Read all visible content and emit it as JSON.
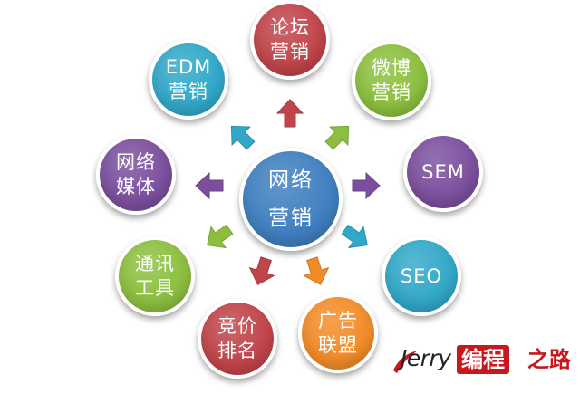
{
  "center": {
    "lines": [
      "网络",
      "营销"
    ],
    "color": "#3f7fbf"
  },
  "nodes": [
    {
      "id": "forum",
      "lines": [
        "论坛",
        "营销"
      ],
      "color": "#c0444a",
      "arrow_color": "#c0444a"
    },
    {
      "id": "weibo",
      "lines": [
        "微博",
        "营销"
      ],
      "color": "#8cbf3f",
      "arrow_color": "#8cbf3f"
    },
    {
      "id": "sem",
      "lines": [
        "SEM"
      ],
      "color": "#7b4f9d",
      "arrow_color": "#7b4f9d"
    },
    {
      "id": "seo",
      "lines": [
        "SEO"
      ],
      "color": "#31a8c8",
      "arrow_color": "#31a8c8"
    },
    {
      "id": "ads",
      "lines": [
        "广告",
        "联盟"
      ],
      "color": "#f28c28",
      "arrow_color": "#f28c28"
    },
    {
      "id": "bidding",
      "lines": [
        "竞价",
        "排名"
      ],
      "color": "#c0444a",
      "arrow_color": "#c0444a"
    },
    {
      "id": "im",
      "lines": [
        "通讯",
        "工具"
      ],
      "color": "#8cbf3f",
      "arrow_color": "#8cbf3f"
    },
    {
      "id": "media",
      "lines": [
        "网络",
        "媒体"
      ],
      "color": "#7b4f9d",
      "arrow_color": "#7b4f9d"
    },
    {
      "id": "edm",
      "lines": [
        "EDM",
        "营销"
      ],
      "color": "#31a8c8",
      "arrow_color": "#31a8c8"
    }
  ],
  "watermark": {
    "latin": "Jerry",
    "boxed": "编程",
    "tail": "之路",
    "accent": "#c8181e"
  }
}
